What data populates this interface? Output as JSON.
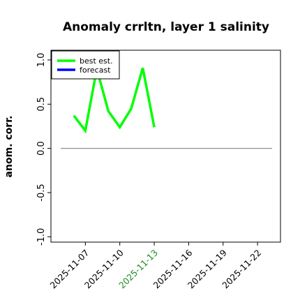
{
  "chart_data": {
    "type": "line",
    "title": "Anomaly crrltn, layer 1 salinity",
    "ylabel": "anom. corr.",
    "x": [
      "2025-11-06",
      "2025-11-07",
      "2025-11-08",
      "2025-11-09",
      "2025-11-10",
      "2025-11-11",
      "2025-11-12",
      "2025-11-13"
    ],
    "series": [
      {
        "name": "best est.",
        "color": "#00ff00",
        "values": [
          0.37,
          0.2,
          0.9,
          0.42,
          0.24,
          0.45,
          0.91,
          0.24
        ]
      },
      {
        "name": "forecast",
        "color": "#0000ff",
        "values": [
          null,
          null,
          null,
          null,
          null,
          null,
          null,
          null
        ]
      }
    ],
    "xlim": [
      "2025-11-04",
      "2025-11-24"
    ],
    "xticks": [
      "2025-11-07",
      "2025-11-10",
      "2025-11-13",
      "2025-11-16",
      "2025-11-19",
      "2025-11-22"
    ],
    "xtick_label_colors": [
      "#000000",
      "#000000",
      "#228b22",
      "#000000",
      "#000000",
      "#000000"
    ],
    "ylim": [
      -1.06,
      1.11
    ],
    "yticks": [
      {
        "value": -1,
        "label": "-1.0"
      },
      {
        "value": -0.5,
        "label": "-0.5"
      },
      {
        "value": 0,
        "label": "0.0"
      },
      {
        "value": 0.5,
        "label": "0.5"
      },
      {
        "value": 1,
        "label": "1.0"
      }
    ],
    "reference_line": {
      "value": 0,
      "color": "#808080"
    },
    "legend": "upper left",
    "grid": false
  }
}
